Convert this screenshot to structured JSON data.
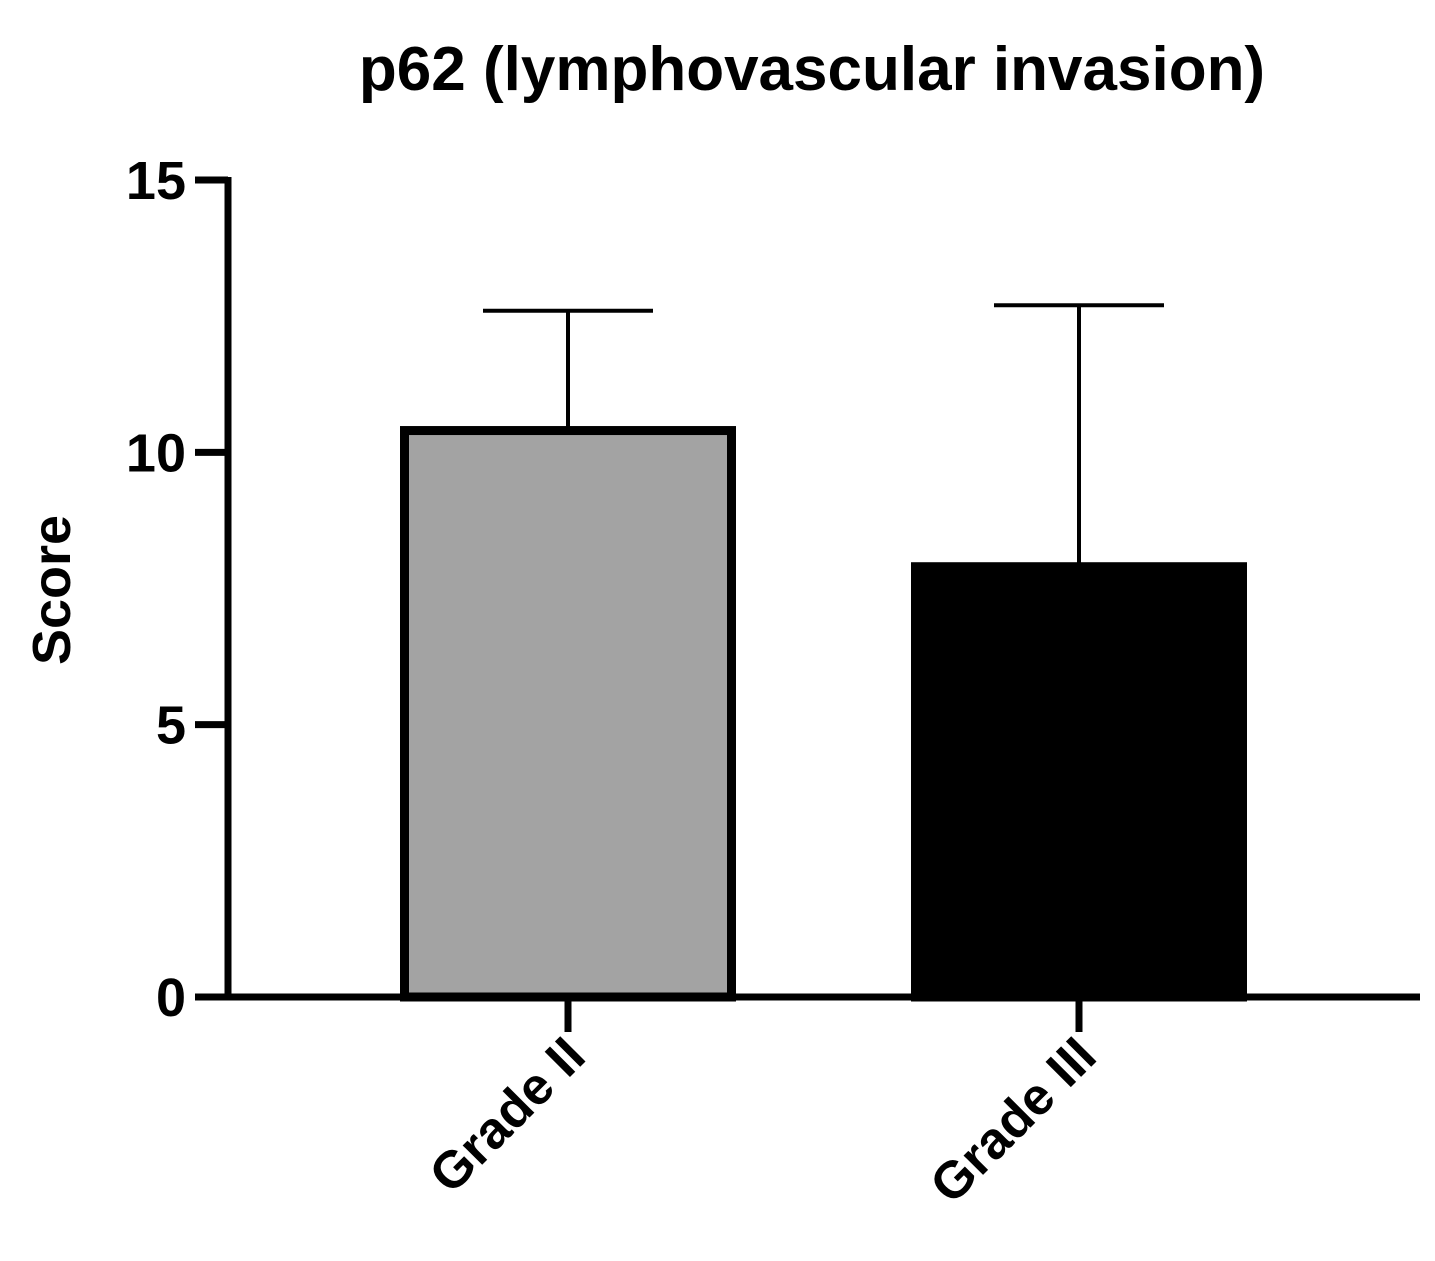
{
  "chart_data": {
    "type": "bar",
    "title": "p62 (lymphovascular invasion)",
    "xlabel": "",
    "ylabel": "Score",
    "ylim": [
      0,
      15
    ],
    "yticks": [
      0,
      5,
      10,
      15
    ],
    "categories": [
      "Grade II",
      "Grade III"
    ],
    "values": [
      10.4,
      7.9
    ],
    "error_upper": [
      12.6,
      12.7
    ],
    "bar_colors": [
      "#a3a3a3",
      "#000000"
    ],
    "grid": false,
    "legend": "none"
  }
}
